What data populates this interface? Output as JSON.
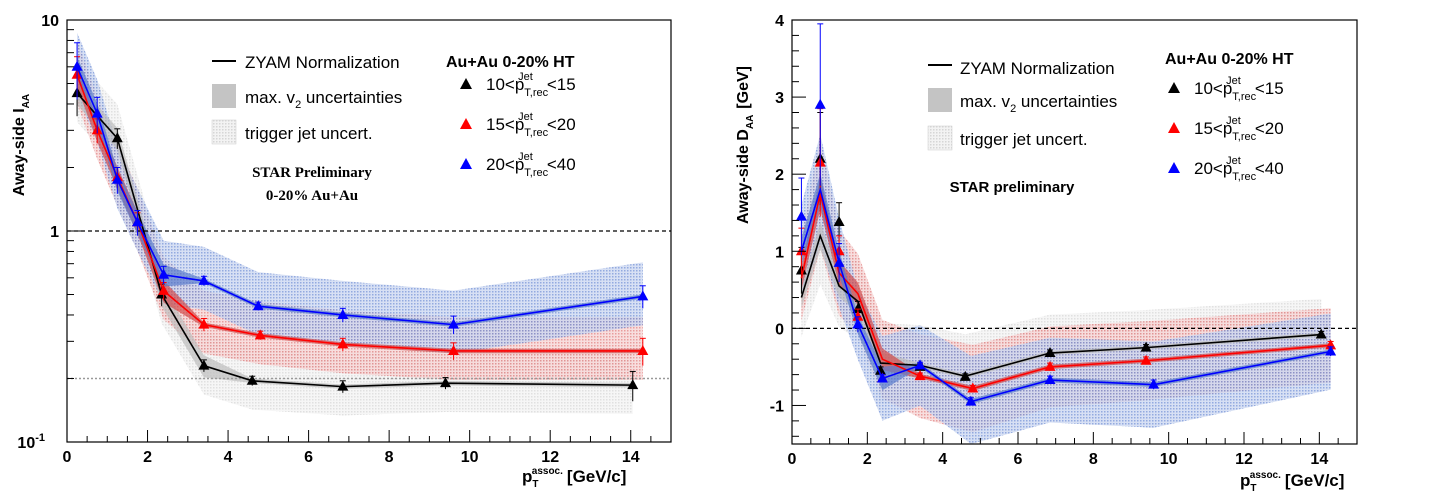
{
  "chart_data": [
    {
      "type": "scatter",
      "xlabel_main": "p",
      "xlabel_sub": "T",
      "xlabel_sup": "assoc.",
      "xlabel_unit": "[GeV/c]",
      "ylabel_main": "Away-side I",
      "ylabel_sub": "AA",
      "xlim": [
        0,
        15
      ],
      "ylim": [
        0.1,
        10
      ],
      "yscale": "log",
      "x_ticks": [
        "0",
        "2",
        "4",
        "6",
        "8",
        "10",
        "12",
        "14"
      ],
      "y_ticks": [
        {
          "label": "10",
          "value": 10
        },
        {
          "label": "1",
          "value": 1
        },
        {
          "label": "10",
          "sup": "-1",
          "value": 0.1
        }
      ],
      "reference_lines": [
        {
          "y": 1,
          "style": "dashed"
        },
        {
          "y": 0.2,
          "style": "dotted-gray"
        }
      ],
      "annotations": [
        "STAR Preliminary",
        "0-20% Au+Au"
      ],
      "legend_left": {
        "zyam": "ZYAM Normalization",
        "v2": "max. v",
        "v2_sub": "2",
        "v2_rest": " uncertainties",
        "trig": "trigger jet uncert."
      },
      "legend_title": "Au+Au 0-20% HT",
      "series": [
        {
          "name": "10<pT,rec Jet<15",
          "label_pre": "10<p",
          "label_post": "<15",
          "color": "#000000",
          "x": [
            0.25,
            1.25,
            2.35,
            3.4,
            4.6,
            6.85,
            9.4,
            14.05
          ],
          "y": [
            4.5,
            2.75,
            0.5,
            0.23,
            0.195,
            0.183,
            0.19,
            0.186
          ],
          "yerr": [
            1.0,
            0.3,
            0.06,
            0.015,
            0.01,
            0.012,
            0.012,
            0.03
          ],
          "line_x": [
            0.25,
            1.25,
            2.35,
            3.4,
            4.6,
            6.85,
            9.4,
            14.05
          ],
          "line_y": [
            4.5,
            2.75,
            0.5,
            0.23,
            0.195,
            0.183,
            0.19,
            0.186
          ]
        },
        {
          "name": "15<pT,rec Jet<20",
          "label_pre": "15<p",
          "label_post": "<20",
          "color": "#ff0000",
          "x": [
            0.25,
            0.75,
            1.25,
            1.75,
            2.4,
            3.4,
            4.8,
            6.85,
            9.6,
            14.3
          ],
          "y": [
            5.5,
            3.0,
            1.8,
            1.1,
            0.52,
            0.36,
            0.32,
            0.29,
            0.27,
            0.27
          ],
          "yerr": [
            1.2,
            0.4,
            0.2,
            0.12,
            0.05,
            0.025,
            0.015,
            0.02,
            0.025,
            0.04
          ],
          "line_x": [
            0.25,
            0.75,
            1.25,
            1.75,
            2.4,
            3.4,
            4.8,
            6.85,
            9.6,
            14.3
          ],
          "line_y": [
            5.5,
            3.0,
            1.8,
            1.1,
            0.52,
            0.36,
            0.32,
            0.29,
            0.27,
            0.27
          ]
        },
        {
          "name": "20<pT,rec Jet<40",
          "label_pre": "20<p",
          "label_post": "<40",
          "color": "#0000ff",
          "x": [
            0.25,
            0.75,
            1.25,
            1.75,
            2.4,
            3.4,
            4.75,
            6.85,
            9.6,
            14.3
          ],
          "y": [
            6.0,
            3.6,
            1.75,
            1.1,
            0.62,
            0.58,
            0.44,
            0.4,
            0.36,
            0.49
          ],
          "yerr": [
            1.8,
            0.7,
            0.25,
            0.15,
            0.06,
            0.03,
            0.02,
            0.03,
            0.035,
            0.06
          ],
          "line_x": [
            0.25,
            0.75,
            1.25,
            1.75,
            2.4,
            3.4,
            4.75,
            6.85,
            9.6,
            14.3
          ],
          "line_y": [
            6.0,
            3.6,
            1.75,
            1.1,
            0.62,
            0.58,
            0.44,
            0.4,
            0.36,
            0.49
          ]
        }
      ]
    },
    {
      "type": "scatter",
      "xlabel_main": "p",
      "xlabel_sub": "T",
      "xlabel_sup": "assoc.",
      "xlabel_unit": "[GeV/c]",
      "ylabel_main": "Away-side D",
      "ylabel_sub": "AA",
      "ylabel_unit": "[GeV]",
      "xlim": [
        0,
        15
      ],
      "ylim": [
        -1.5,
        4
      ],
      "yscale": "linear",
      "x_ticks": [
        "0",
        "2",
        "4",
        "6",
        "8",
        "10",
        "12",
        "14"
      ],
      "y_ticks": [
        {
          "label": "4",
          "value": 4
        },
        {
          "label": "3",
          "value": 3
        },
        {
          "label": "2",
          "value": 2
        },
        {
          "label": "1",
          "value": 1
        },
        {
          "label": "0",
          "value": 0
        },
        {
          "label": "-1",
          "value": -1
        }
      ],
      "reference_lines": [
        {
          "y": 0,
          "style": "dashed"
        }
      ],
      "annotations": [
        "STAR preliminary"
      ],
      "legend_left": {
        "zyam": "ZYAM Normalization",
        "v2": "max. v",
        "v2_sub": "2",
        "v2_rest": " uncertainties",
        "trig": "trigger jet uncert."
      },
      "legend_title": "Au+Au 0-20% HT",
      "series": [
        {
          "name": "10<pT,rec Jet<15",
          "label_pre": "10<p",
          "label_post": "<15",
          "color": "#000000",
          "x": [
            0.25,
            0.75,
            1.25,
            1.75,
            2.35,
            3.4,
            4.6,
            6.85,
            9.4,
            14.05
          ],
          "y": [
            0.75,
            2.2,
            1.38,
            0.25,
            -0.55,
            -0.5,
            -0.63,
            -0.32,
            -0.25,
            -0.08
          ],
          "yerr": [
            0.3,
            0.6,
            0.25,
            0.1,
            0.05,
            0.04,
            0.04,
            0.04,
            0.04,
            0.04
          ],
          "line_x": [
            0.25,
            0.75,
            1.25,
            1.75,
            2.35,
            3.4,
            4.6,
            6.85,
            9.4,
            14.05
          ],
          "line_y": [
            0.4,
            1.2,
            0.55,
            0.35,
            -0.45,
            -0.48,
            -0.62,
            -0.32,
            -0.25,
            -0.08
          ]
        },
        {
          "name": "15<pT,rec Jet<20",
          "label_pre": "15<p",
          "label_post": "<20",
          "color": "#ff0000",
          "x": [
            0.25,
            0.75,
            1.25,
            1.75,
            2.4,
            3.4,
            4.8,
            6.85,
            9.4,
            14.3
          ],
          "y": [
            1.0,
            2.15,
            1.0,
            0.15,
            -0.65,
            -0.62,
            -0.78,
            -0.5,
            -0.42,
            -0.22
          ],
          "yerr": [
            0.3,
            0.7,
            0.2,
            0.1,
            0.05,
            0.04,
            0.04,
            0.05,
            0.05,
            0.05
          ],
          "line_x": [
            0.25,
            0.75,
            1.25,
            1.75,
            2.4,
            3.4,
            4.8,
            6.85,
            9.4,
            14.3
          ],
          "line_y": [
            0.65,
            1.75,
            0.72,
            0.45,
            -0.4,
            -0.62,
            -0.78,
            -0.5,
            -0.42,
            -0.22
          ]
        },
        {
          "name": "20<pT,rec Jet<40",
          "label_pre": "20<p",
          "label_post": "<40",
          "color": "#0000ff",
          "x": [
            0.25,
            0.75,
            1.25,
            1.75,
            2.4,
            3.4,
            4.75,
            6.85,
            9.6,
            14.3
          ],
          "y": [
            1.45,
            2.9,
            0.85,
            0.05,
            -0.65,
            -0.48,
            -0.95,
            -0.67,
            -0.73,
            -0.3
          ],
          "yerr": [
            0.5,
            1.05,
            0.25,
            0.1,
            0.05,
            0.04,
            0.05,
            0.05,
            0.06,
            0.06
          ],
          "line_x": [
            0.25,
            0.75,
            1.25,
            1.75,
            2.4,
            3.4,
            4.75,
            6.85,
            9.6,
            14.3
          ],
          "line_y": [
            1.0,
            1.8,
            0.85,
            0.05,
            -0.65,
            -0.48,
            -0.95,
            -0.67,
            -0.73,
            -0.3
          ]
        }
      ]
    }
  ],
  "series_label_sup": "Jet",
  "series_label_sub": "T,rec",
  "colors": {
    "v2_band": "#bbbbbb",
    "trig_band": "#dddddd",
    "blue_band": "#7a96d6",
    "red_band": "#e27a7a"
  }
}
